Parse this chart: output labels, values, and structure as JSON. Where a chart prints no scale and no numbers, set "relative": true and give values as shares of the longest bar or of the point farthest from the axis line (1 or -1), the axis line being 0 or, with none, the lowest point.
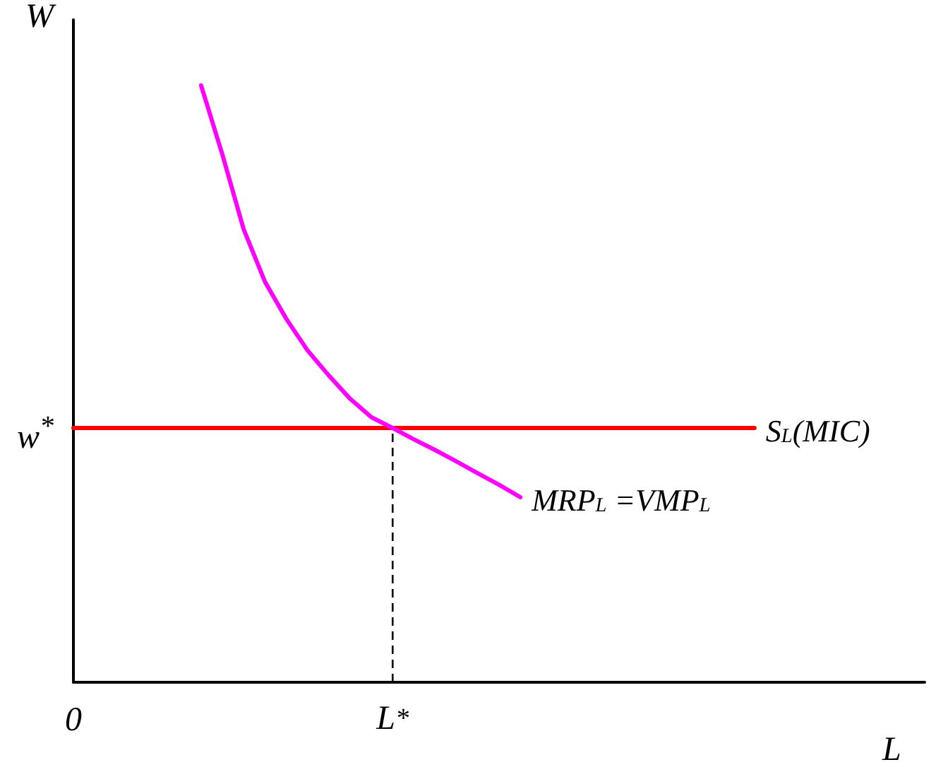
{
  "chart_data": {
    "type": "line",
    "relative": true,
    "xlabel": "L",
    "ylabel": "W",
    "categories": [
      null,
      null,
      null,
      null,
      null,
      null,
      null,
      null,
      null,
      null,
      null,
      null,
      null,
      null,
      null,
      null,
      null,
      null,
      null,
      null,
      null,
      null,
      null,
      null,
      null,
      null,
      null,
      null,
      null,
      null,
      null,
      null,
      null,
      null,
      null,
      null,
      null,
      null,
      null,
      null,
      null
    ],
    "annotations": [
      "0",
      "w$^{*}$"
    ],
    "ref_lines": [
      {
        "axis": "x",
        "label": "L$^{*}$",
        "line_style": "dashed",
        "color": "#000000"
      }
    ],
    "grid": false,
    "legend": false,
    "marker": "none",
    "series": [
      {
        "name": "S$_{L}$(MIC)",
        "color": "#ff0000",
        "values": [
          0.426,
          0.426,
          0.426,
          0.426,
          0.426,
          0.426,
          0.426,
          0.426,
          0.426,
          0.426,
          0.426,
          0.426,
          0.426,
          0.426,
          0.426,
          0.426,
          0.426,
          0.426,
          0.426,
          0.426,
          0.426,
          0.426,
          0.426,
          0.426,
          0.426,
          0.426,
          0.426,
          0.426,
          0.426,
          0.426,
          0.426,
          0.426,
          0.426,
          null,
          null,
          null,
          null,
          null,
          null,
          null,
          null
        ]
      },
      {
        "name": "MRP$_{L}$ =VMP$_{L}$",
        "color": "#ff00ff",
        "values": [
          null,
          null,
          null,
          null,
          null,
          null,
          1,
          0.884,
          0.759,
          0.671,
          0.609,
          0.556,
          0.514,
          0.475,
          0.444,
          0.426,
          0.407,
          0.389,
          0.37,
          0.35,
          0.331,
          0.31,
          null,
          null,
          null,
          null,
          null,
          null,
          null,
          null,
          null,
          null,
          null,
          null,
          null,
          null,
          null,
          null,
          null,
          null,
          null
        ]
      }
    ]
  }
}
